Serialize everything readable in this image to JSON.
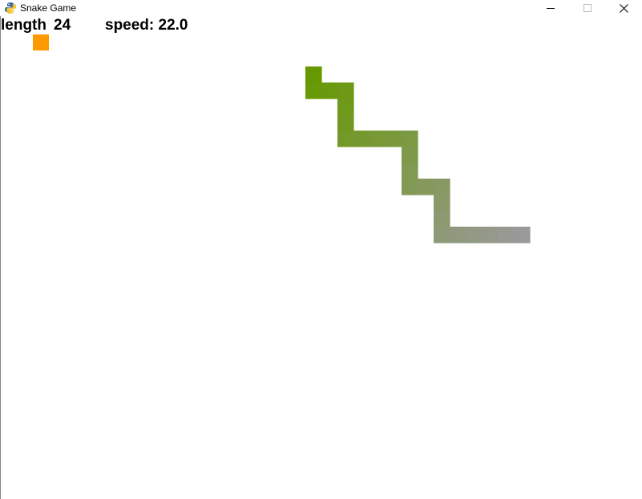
{
  "window": {
    "title": "Snake Game",
    "icon": "python-snake-icon",
    "controls": [
      "minimize",
      "maximize",
      "close"
    ]
  },
  "hud": {
    "length_label": "length",
    "length_value": "24",
    "speed_text": "speed: 22.0"
  },
  "colors": {
    "background": "#ffffff",
    "food": "#ff9900",
    "snake_head": "#669900",
    "snake_tail": "#999999"
  },
  "game": {
    "cell_size": 20,
    "food": {
      "col": 2,
      "row": 2
    },
    "snake": [
      {
        "col": 19,
        "row": 4
      },
      {
        "col": 19,
        "row": 5
      },
      {
        "col": 20,
        "row": 5
      },
      {
        "col": 21,
        "row": 5
      },
      {
        "col": 21,
        "row": 6
      },
      {
        "col": 21,
        "row": 7
      },
      {
        "col": 21,
        "row": 8
      },
      {
        "col": 22,
        "row": 8
      },
      {
        "col": 23,
        "row": 8
      },
      {
        "col": 24,
        "row": 8
      },
      {
        "col": 25,
        "row": 8
      },
      {
        "col": 25,
        "row": 9
      },
      {
        "col": 25,
        "row": 10
      },
      {
        "col": 25,
        "row": 11
      },
      {
        "col": 26,
        "row": 11
      },
      {
        "col": 27,
        "row": 11
      },
      {
        "col": 27,
        "row": 12
      },
      {
        "col": 27,
        "row": 13
      },
      {
        "col": 27,
        "row": 14
      },
      {
        "col": 28,
        "row": 14
      },
      {
        "col": 29,
        "row": 14
      },
      {
        "col": 30,
        "row": 14
      },
      {
        "col": 31,
        "row": 14
      },
      {
        "col": 32,
        "row": 14
      }
    ]
  }
}
